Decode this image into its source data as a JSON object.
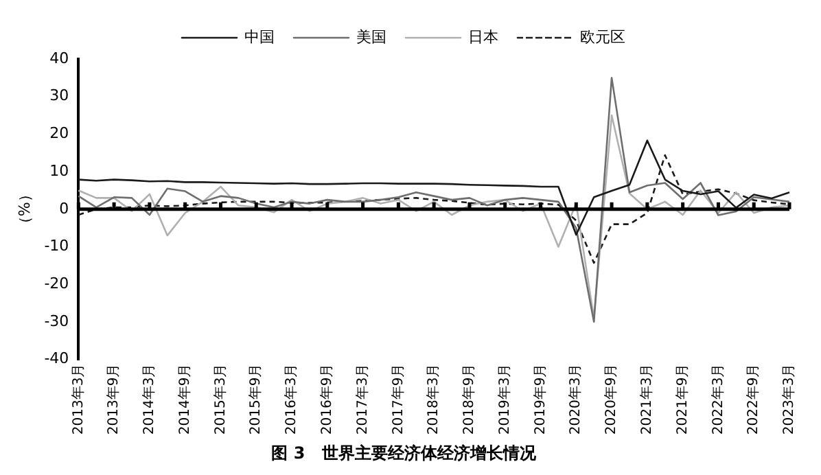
{
  "chart_data": {
    "type": "line",
    "title": "图 3　世界主要经济体经济增长情况",
    "ylabel": "（%）",
    "categories": [
      "2013年3月",
      null,
      "2013年9月",
      null,
      "2014年3月",
      null,
      "2014年9月",
      null,
      "2015年3月",
      null,
      "2015年9月",
      null,
      "2016年3月",
      null,
      "2016年9月",
      null,
      "2017年3月",
      null,
      "2017年9月",
      null,
      "2018年3月",
      null,
      "2018年9月",
      null,
      "2019年3月",
      null,
      "2019年9月",
      null,
      "2020年3月",
      null,
      "2020年9月",
      null,
      "2021年3月",
      null,
      "2021年9月",
      null,
      "2022年3月",
      null,
      "2022年9月",
      null,
      "2023年3月"
    ],
    "series": [
      {
        "name": "中国",
        "color": "#1a1a1a",
        "line_style": "solid",
        "values": [
          7.9,
          7.6,
          7.9,
          7.7,
          7.4,
          7.5,
          7.2,
          7.2,
          7.1,
          7.0,
          6.9,
          6.8,
          6.9,
          6.7,
          6.7,
          6.8,
          6.9,
          6.9,
          6.8,
          6.8,
          6.8,
          6.7,
          6.5,
          6.4,
          6.3,
          6.2,
          6.0,
          6.0,
          -6.8,
          3.2,
          4.9,
          6.5,
          18.3,
          7.9,
          4.9,
          4.0,
          4.8,
          0.4,
          3.9,
          2.9,
          4.5
        ]
      },
      {
        "name": "美国",
        "color": "#6e6e6e",
        "line_style": "solid",
        "values": [
          3.5,
          0.5,
          3.2,
          3.0,
          -1.5,
          5.5,
          4.8,
          2.0,
          3.5,
          3.0,
          1.5,
          0.5,
          2.0,
          1.5,
          2.5,
          2.0,
          2.0,
          2.5,
          3.2,
          4.5,
          3.5,
          2.5,
          3.0,
          1.0,
          2.5,
          3.0,
          2.5,
          2.0,
          -5.0,
          -30.0,
          35.0,
          4.5,
          6.3,
          7.0,
          2.7,
          7.0,
          -1.6,
          -0.6,
          3.2,
          2.6,
          2.0
        ]
      },
      {
        "name": "日本",
        "color": "#b0b0b0",
        "line_style": "solid",
        "values": [
          5.0,
          3.0,
          3.0,
          -0.5,
          4.0,
          -7.0,
          -1.0,
          2.0,
          6.0,
          1.0,
          0.5,
          -0.8,
          2.5,
          -0.5,
          1.5,
          2.0,
          3.0,
          1.5,
          2.5,
          -0.5,
          2.0,
          -1.5,
          1.0,
          2.0,
          2.5,
          -0.5,
          1.5,
          -10.0,
          1.5,
          -29.0,
          25.0,
          4.2,
          0.0,
          2.0,
          -1.5,
          5.0,
          -1.0,
          4.5,
          -1.0,
          0.5,
          1.0
        ]
      },
      {
        "name": "欧元区",
        "color": "#1a1a1a",
        "line_style": "dashed",
        "values": [
          -1.5,
          0.0,
          0.5,
          0.5,
          1.0,
          0.8,
          1.0,
          1.5,
          1.8,
          2.0,
          2.0,
          2.0,
          1.7,
          1.7,
          1.8,
          2.0,
          2.2,
          2.5,
          2.8,
          3.0,
          2.5,
          2.2,
          1.7,
          1.2,
          1.5,
          1.3,
          1.5,
          1.2,
          -3.0,
          -14.3,
          -4.0,
          -4.0,
          -1.0,
          14.4,
          4.0,
          4.7,
          5.3,
          4.2,
          2.4,
          1.8,
          1.3
        ]
      }
    ],
    "ylim": [
      -40,
      40
    ],
    "yticks": [
      -40,
      -30,
      -20,
      -10,
      0,
      10,
      20,
      30,
      40
    ],
    "grid": false,
    "legend": "top",
    "marker": "none",
    "ref_lines": [
      {
        "axis": "y",
        "value": 0,
        "color": "#000000"
      }
    ]
  }
}
